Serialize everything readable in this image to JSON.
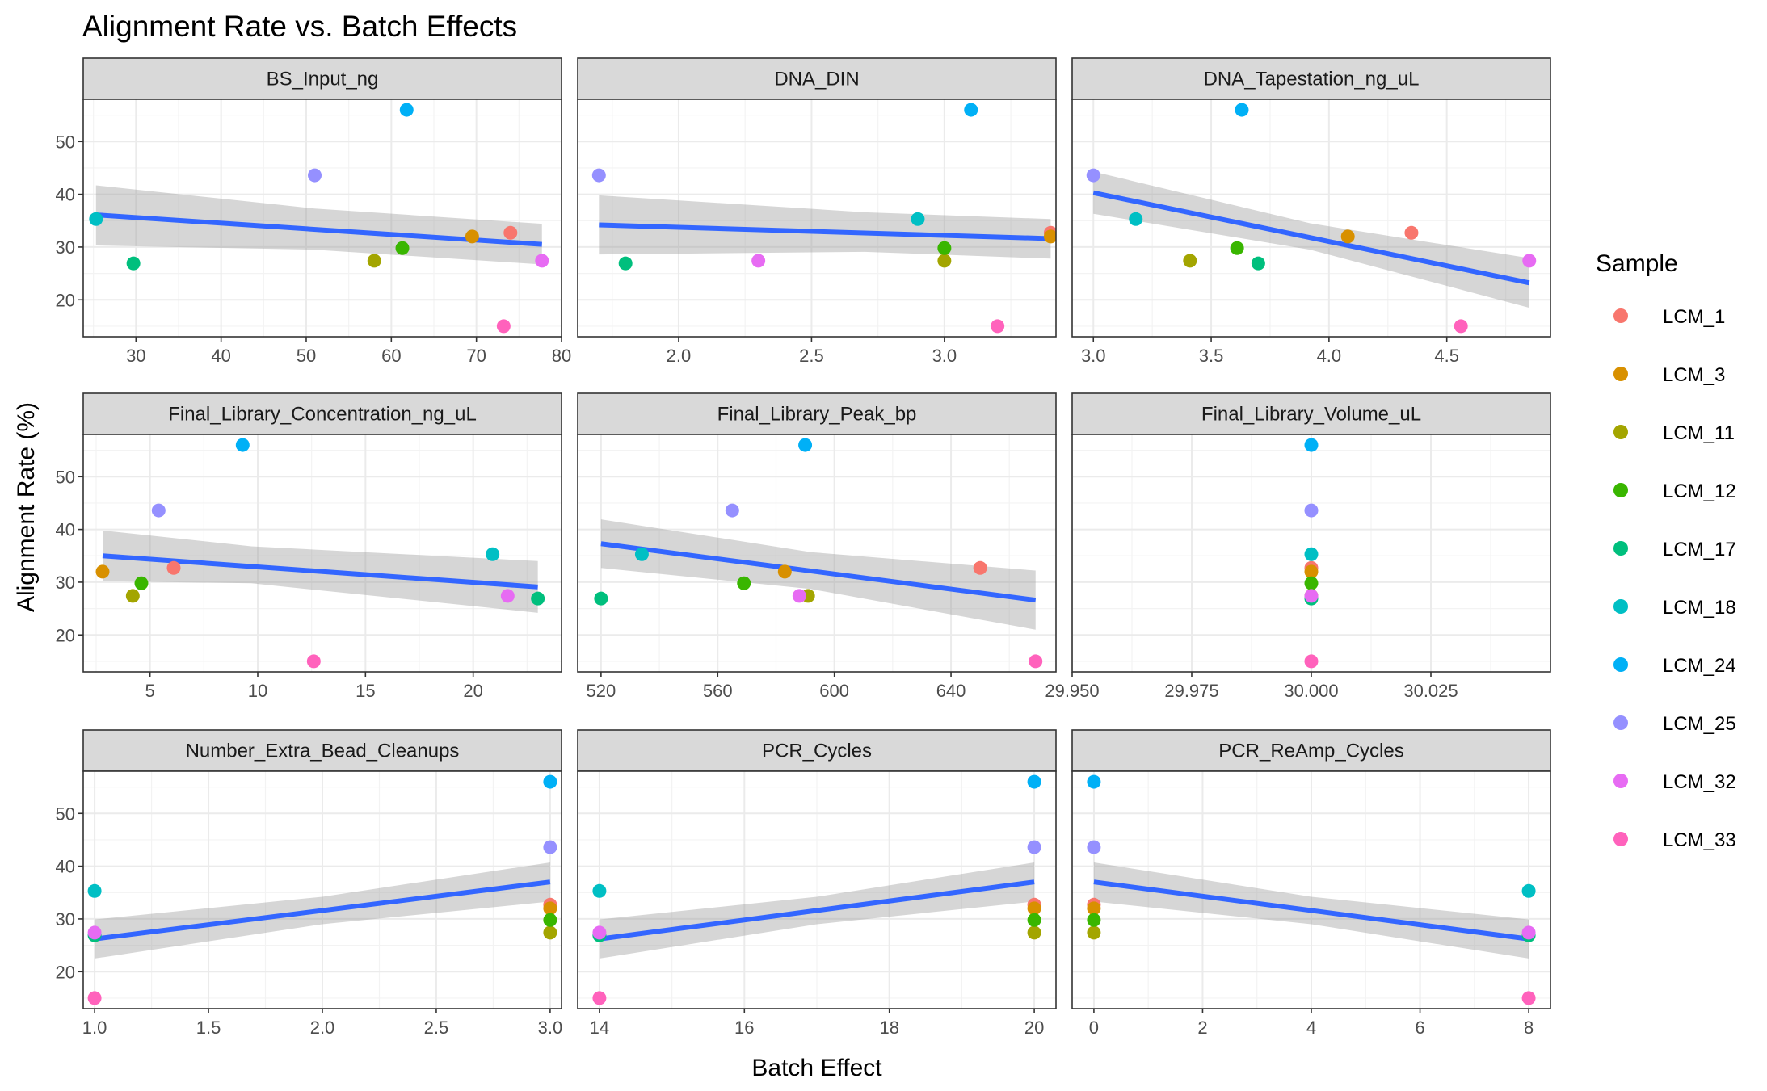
{
  "chart_data": {
    "type": "scatter",
    "title": "Alignment Rate vs. Batch Effects",
    "xlabel": "Batch Effect",
    "ylabel": "Alignment Rate (%)",
    "ylim": [
      13,
      58
    ],
    "y_ticks": [
      20,
      30,
      40,
      50
    ],
    "grid": true,
    "legend": {
      "title": "Sample",
      "position": "right",
      "entries": [
        {
          "name": "LCM_1",
          "color": "#F8766D"
        },
        {
          "name": "LCM_3",
          "color": "#D89000"
        },
        {
          "name": "LCM_11",
          "color": "#A3A500"
        },
        {
          "name": "LCM_12",
          "color": "#39B600"
        },
        {
          "name": "LCM_17",
          "color": "#00BF7D"
        },
        {
          "name": "LCM_18",
          "color": "#00BFC4"
        },
        {
          "name": "LCM_24",
          "color": "#00B0F6"
        },
        {
          "name": "LCM_25",
          "color": "#9590FF"
        },
        {
          "name": "LCM_32",
          "color": "#E76BF3"
        },
        {
          "name": "LCM_33",
          "color": "#FF62BC"
        }
      ]
    },
    "fit_line_color": "#3366FF",
    "panels": [
      {
        "name": "BS_Input_ng",
        "xlim": [
          23.8,
          80
        ],
        "x_ticks": [
          30,
          40,
          50,
          60,
          70,
          80
        ],
        "x_tick_labels": [
          "30",
          "40",
          "50",
          "60",
          "70",
          "80"
        ],
        "points": [
          {
            "sample": "LCM_1",
            "x": 74,
            "y": 32.7
          },
          {
            "sample": "LCM_3",
            "x": 69.5,
            "y": 32
          },
          {
            "sample": "LCM_11",
            "x": 58,
            "y": 27.4
          },
          {
            "sample": "LCM_12",
            "x": 61.3,
            "y": 29.8
          },
          {
            "sample": "LCM_17",
            "x": 29.7,
            "y": 26.9
          },
          {
            "sample": "LCM_18",
            "x": 25.3,
            "y": 35.3
          },
          {
            "sample": "LCM_24",
            "x": 61.8,
            "y": 56
          },
          {
            "sample": "LCM_25",
            "x": 51,
            "y": 43.6
          },
          {
            "sample": "LCM_32",
            "x": 77.7,
            "y": 27.4
          },
          {
            "sample": "LCM_33",
            "x": 73.2,
            "y": 15
          }
        ],
        "fit": {
          "x": [
            25.3,
            77.7
          ],
          "y": [
            36.1,
            30.5
          ]
        },
        "ci": {
          "x": [
            25.3,
            51,
            77.7
          ],
          "lower": [
            30.3,
            29.5,
            26.7
          ],
          "upper": [
            41.7,
            37.3,
            34.4
          ]
        }
      },
      {
        "name": "DNA_DIN",
        "xlim": [
          1.62,
          3.42
        ],
        "x_ticks": [
          2.0,
          2.5,
          3.0
        ],
        "x_tick_labels": [
          "2.0",
          "2.5",
          "3.0"
        ],
        "points": [
          {
            "sample": "LCM_1",
            "x": 3.4,
            "y": 32.7
          },
          {
            "sample": "LCM_3",
            "x": 3.4,
            "y": 32
          },
          {
            "sample": "LCM_11",
            "x": 3.0,
            "y": 27.4
          },
          {
            "sample": "LCM_12",
            "x": 3.0,
            "y": 29.8
          },
          {
            "sample": "LCM_17",
            "x": 1.8,
            "y": 26.9
          },
          {
            "sample": "LCM_18",
            "x": 2.9,
            "y": 35.3
          },
          {
            "sample": "LCM_24",
            "x": 3.1,
            "y": 56
          },
          {
            "sample": "LCM_25",
            "x": 1.7,
            "y": 43.6
          },
          {
            "sample": "LCM_32",
            "x": 2.3,
            "y": 27.4
          },
          {
            "sample": "LCM_33",
            "x": 3.2,
            "y": 15
          }
        ],
        "fit": {
          "x": [
            1.7,
            3.4
          ],
          "y": [
            34.2,
            31.6
          ]
        },
        "ci": {
          "x": [
            1.7,
            2.7,
            3.4
          ],
          "lower": [
            28.6,
            29.1,
            27.8
          ],
          "upper": [
            39.8,
            36.6,
            35.3
          ]
        }
      },
      {
        "name": "DNA_Tapestation_ng_uL",
        "xlim": [
          2.91,
          4.94
        ],
        "x_ticks": [
          3.0,
          3.5,
          4.0,
          4.5
        ],
        "x_tick_labels": [
          "3.0",
          "3.5",
          "4.0",
          "4.5"
        ],
        "points": [
          {
            "sample": "LCM_1",
            "x": 4.35,
            "y": 32.7
          },
          {
            "sample": "LCM_3",
            "x": 4.08,
            "y": 32
          },
          {
            "sample": "LCM_11",
            "x": 3.41,
            "y": 27.4
          },
          {
            "sample": "LCM_12",
            "x": 3.61,
            "y": 29.8
          },
          {
            "sample": "LCM_17",
            "x": 3.7,
            "y": 26.9
          },
          {
            "sample": "LCM_18",
            "x": 3.18,
            "y": 35.3
          },
          {
            "sample": "LCM_24",
            "x": 3.63,
            "y": 56
          },
          {
            "sample": "LCM_25",
            "x": 3.0,
            "y": 43.6
          },
          {
            "sample": "LCM_32",
            "x": 4.85,
            "y": 27.4
          },
          {
            "sample": "LCM_33",
            "x": 4.56,
            "y": 15
          }
        ],
        "fit": {
          "x": [
            3.0,
            4.85
          ],
          "y": [
            40.3,
            23.2
          ]
        },
        "ci": {
          "x": [
            3.0,
            3.92,
            4.85
          ],
          "lower": [
            36.3,
            29.5,
            18.5
          ],
          "upper": [
            44.3,
            34.5,
            27.9
          ]
        }
      },
      {
        "name": "Final_Library_Concentration_ng_uL",
        "xlim": [
          1.9,
          24.1
        ],
        "x_ticks": [
          5,
          10,
          15,
          20
        ],
        "x_tick_labels": [
          "5",
          "10",
          "15",
          "20"
        ],
        "points": [
          {
            "sample": "LCM_1",
            "x": 6.1,
            "y": 32.7
          },
          {
            "sample": "LCM_3",
            "x": 2.8,
            "y": 32
          },
          {
            "sample": "LCM_11",
            "x": 4.2,
            "y": 27.4
          },
          {
            "sample": "LCM_12",
            "x": 4.6,
            "y": 29.8
          },
          {
            "sample": "LCM_17",
            "x": 23.0,
            "y": 26.9
          },
          {
            "sample": "LCM_18",
            "x": 20.9,
            "y": 35.3
          },
          {
            "sample": "LCM_24",
            "x": 9.3,
            "y": 56
          },
          {
            "sample": "LCM_25",
            "x": 5.4,
            "y": 43.6
          },
          {
            "sample": "LCM_32",
            "x": 21.6,
            "y": 27.4
          },
          {
            "sample": "LCM_33",
            "x": 12.6,
            "y": 15
          }
        ],
        "fit": {
          "x": [
            2.8,
            23.0
          ],
          "y": [
            35.0,
            29.1
          ]
        },
        "ci": {
          "x": [
            2.8,
            9.7,
            23.0
          ],
          "lower": [
            30.2,
            29.8,
            24.2
          ],
          "upper": [
            39.8,
            36.8,
            34.0
          ]
        }
      },
      {
        "name": "Final_Library_Peak_bp",
        "xlim": [
          512,
          676
        ],
        "x_ticks": [
          520,
          560,
          600,
          640
        ],
        "x_tick_labels": [
          "520",
          "560",
          "600",
          "640"
        ],
        "points": [
          {
            "sample": "LCM_1",
            "x": 650,
            "y": 32.7
          },
          {
            "sample": "LCM_3",
            "x": 583,
            "y": 32
          },
          {
            "sample": "LCM_11",
            "x": 591,
            "y": 27.4
          },
          {
            "sample": "LCM_12",
            "x": 569,
            "y": 29.8
          },
          {
            "sample": "LCM_17",
            "x": 520,
            "y": 26.9
          },
          {
            "sample": "LCM_18",
            "x": 534,
            "y": 35.3
          },
          {
            "sample": "LCM_24",
            "x": 590,
            "y": 56
          },
          {
            "sample": "LCM_25",
            "x": 565,
            "y": 43.6
          },
          {
            "sample": "LCM_32",
            "x": 588,
            "y": 27.4
          },
          {
            "sample": "LCM_33",
            "x": 669,
            "y": 15
          }
        ],
        "fit": {
          "x": [
            520,
            669
          ],
          "y": [
            37.3,
            26.6
          ]
        },
        "ci": {
          "x": [
            520,
            592,
            669
          ],
          "lower": [
            32.7,
            28.7,
            21.0
          ],
          "upper": [
            41.9,
            35.7,
            32.2
          ]
        }
      },
      {
        "name": "Final_Library_Volume_uL",
        "xlim": [
          29.95,
          30.05
        ],
        "x_ticks": [
          29.95,
          29.975,
          30.0,
          30.025
        ],
        "x_tick_labels": [
          "29.950",
          "29.975",
          "30.000",
          "30.025"
        ],
        "points": [
          {
            "sample": "LCM_1",
            "x": 30.0,
            "y": 32.7
          },
          {
            "sample": "LCM_3",
            "x": 30.0,
            "y": 32
          },
          {
            "sample": "LCM_11",
            "x": 30.0,
            "y": 27.4
          },
          {
            "sample": "LCM_12",
            "x": 30.0,
            "y": 29.8
          },
          {
            "sample": "LCM_17",
            "x": 30.0,
            "y": 26.9
          },
          {
            "sample": "LCM_18",
            "x": 30.0,
            "y": 35.3
          },
          {
            "sample": "LCM_24",
            "x": 30.0,
            "y": 56
          },
          {
            "sample": "LCM_25",
            "x": 30.0,
            "y": 43.6
          },
          {
            "sample": "LCM_32",
            "x": 30.0,
            "y": 27.4
          },
          {
            "sample": "LCM_33",
            "x": 30.0,
            "y": 15
          }
        ]
      },
      {
        "name": "Number_Extra_Bead_Cleanups",
        "xlim": [
          0.95,
          3.05
        ],
        "x_ticks": [
          1.0,
          1.5,
          2.0,
          2.5,
          3.0
        ],
        "x_tick_labels": [
          "1.0",
          "1.5",
          "2.0",
          "2.5",
          "3.0"
        ],
        "points": [
          {
            "sample": "LCM_1",
            "x": 3,
            "y": 32.7
          },
          {
            "sample": "LCM_3",
            "x": 3,
            "y": 32
          },
          {
            "sample": "LCM_11",
            "x": 3,
            "y": 27.4
          },
          {
            "sample": "LCM_12",
            "x": 3,
            "y": 29.8
          },
          {
            "sample": "LCM_17",
            "x": 1,
            "y": 26.9
          },
          {
            "sample": "LCM_18",
            "x": 1,
            "y": 35.3
          },
          {
            "sample": "LCM_24",
            "x": 3,
            "y": 56
          },
          {
            "sample": "LCM_25",
            "x": 3,
            "y": 43.6
          },
          {
            "sample": "LCM_32",
            "x": 1,
            "y": 27.4
          },
          {
            "sample": "LCM_33",
            "x": 1,
            "y": 15
          }
        ],
        "fit": {
          "x": [
            1,
            3
          ],
          "y": [
            26.2,
            37.0
          ]
        },
        "ci": {
          "x": [
            1,
            2,
            3
          ],
          "lower": [
            22.5,
            29.0,
            33.3
          ],
          "upper": [
            29.9,
            34.2,
            40.7
          ]
        }
      },
      {
        "name": "PCR_Cycles",
        "xlim": [
          13.7,
          20.3
        ],
        "x_ticks": [
          14,
          16,
          18,
          20
        ],
        "x_tick_labels": [
          "14",
          "16",
          "18",
          "20"
        ],
        "points": [
          {
            "sample": "LCM_1",
            "x": 20,
            "y": 32.7
          },
          {
            "sample": "LCM_3",
            "x": 20,
            "y": 32
          },
          {
            "sample": "LCM_11",
            "x": 20,
            "y": 27.4
          },
          {
            "sample": "LCM_12",
            "x": 20,
            "y": 29.8
          },
          {
            "sample": "LCM_17",
            "x": 14,
            "y": 26.9
          },
          {
            "sample": "LCM_18",
            "x": 14,
            "y": 35.3
          },
          {
            "sample": "LCM_24",
            "x": 20,
            "y": 56
          },
          {
            "sample": "LCM_25",
            "x": 20,
            "y": 43.6
          },
          {
            "sample": "LCM_32",
            "x": 14,
            "y": 27.4
          },
          {
            "sample": "LCM_33",
            "x": 14,
            "y": 15
          }
        ],
        "fit": {
          "x": [
            14,
            20
          ],
          "y": [
            26.2,
            37.0
          ]
        },
        "ci": {
          "x": [
            14,
            17,
            20
          ],
          "lower": [
            22.5,
            29.0,
            33.3
          ],
          "upper": [
            29.9,
            34.2,
            40.7
          ]
        }
      },
      {
        "name": "PCR_ReAmp_Cycles",
        "xlim": [
          -0.4,
          8.4
        ],
        "x_ticks": [
          0,
          2,
          4,
          6,
          8
        ],
        "x_tick_labels": [
          "0",
          "2",
          "4",
          "6",
          "8"
        ],
        "points": [
          {
            "sample": "LCM_1",
            "x": 0,
            "y": 32.7
          },
          {
            "sample": "LCM_3",
            "x": 0,
            "y": 32
          },
          {
            "sample": "LCM_11",
            "x": 0,
            "y": 27.4
          },
          {
            "sample": "LCM_12",
            "x": 0,
            "y": 29.8
          },
          {
            "sample": "LCM_17",
            "x": 8,
            "y": 26.9
          },
          {
            "sample": "LCM_18",
            "x": 8,
            "y": 35.3
          },
          {
            "sample": "LCM_24",
            "x": 0,
            "y": 56
          },
          {
            "sample": "LCM_25",
            "x": 0,
            "y": 43.6
          },
          {
            "sample": "LCM_32",
            "x": 8,
            "y": 27.4
          },
          {
            "sample": "LCM_33",
            "x": 8,
            "y": 15
          }
        ],
        "fit": {
          "x": [
            0,
            8
          ],
          "y": [
            37.0,
            26.2
          ]
        },
        "ci": {
          "x": [
            0,
            4,
            8
          ],
          "lower": [
            33.3,
            29.0,
            22.5
          ],
          "upper": [
            40.7,
            34.2,
            29.9
          ]
        }
      }
    ]
  }
}
